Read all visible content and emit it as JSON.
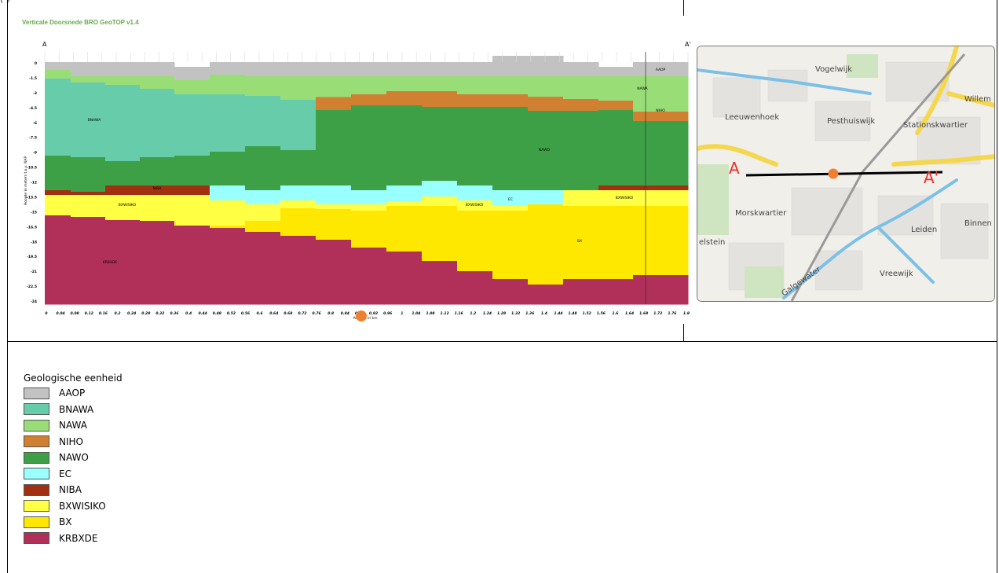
{
  "header": {
    "cut_text": "(                  )",
    "app_title": "Verticale Doorsnede BRO GeoTOP v1.4"
  },
  "section": {
    "label_start": "A",
    "label_end": "A'",
    "ylabel": "Hoogte in meters t.o.v. NAP",
    "xlabel": "Afstand in km",
    "y_ticks": [
      "0",
      "-1.5",
      "-3",
      "-4.5",
      "-6",
      "-7.5",
      "-9",
      "-10.5",
      "-12",
      "-13.5",
      "-15",
      "-16.5",
      "-18",
      "-19.5",
      "-21",
      "-22.5",
      "-24"
    ],
    "x_ticks": [
      "0",
      "0.04",
      "0.08",
      "0.12",
      "0.16",
      "0.2",
      "0.24",
      "0.28",
      "0.32",
      "0.36",
      "0.4",
      "0.44",
      "0.48",
      "0.52",
      "0.56",
      "0.6",
      "0.64",
      "0.68",
      "0.72",
      "0.76",
      "0.8",
      "0.84",
      "0.88",
      "0.92",
      "0.96",
      "1",
      "1.04",
      "1.08",
      "1.12",
      "1.16",
      "1.2",
      "1.24",
      "1.28",
      "1.32",
      "1.36",
      "1.4",
      "1.44",
      "1.48",
      "1.52",
      "1.56",
      "1.6",
      "1.64",
      "1.68",
      "1.72",
      "1.76",
      "1.8"
    ],
    "unit_labels": [
      {
        "text": "AAOP"
      },
      {
        "text": "NAWA"
      },
      {
        "text": "NIHO"
      },
      {
        "text": "BNAWA"
      },
      {
        "text": "NAWO"
      },
      {
        "text": "NIBA"
      },
      {
        "text": "BXWISIKO"
      },
      {
        "text": "BXWISIKO"
      },
      {
        "text": "EC"
      },
      {
        "text": "BXWISIKO"
      },
      {
        "text": "BX"
      },
      {
        "text": "KRBXDE"
      }
    ],
    "cursor_color": "#f08030"
  },
  "map": {
    "places": [
      "Vogelwijk",
      "Leeuwenhoek",
      "Pesthuiswijk",
      "Stationskwartier",
      "Willem",
      "Morskwartier",
      "Leiden",
      "Binnen",
      "Vreewijk",
      "Galgewater",
      "elstein"
    ],
    "marker_a": "A",
    "marker_a2": "A'",
    "line_color": "#000000",
    "marker_color": "#e8302a"
  },
  "legend": {
    "title": "Geologische eenheid",
    "items": [
      {
        "label": "AAOP",
        "color": "#c2c2c2"
      },
      {
        "label": "BNAWA",
        "color": "#66ccaa"
      },
      {
        "label": "NAWA",
        "color": "#99dd77"
      },
      {
        "label": "NIHO",
        "color": "#d08030"
      },
      {
        "label": "NAWO",
        "color": "#3ea046"
      },
      {
        "label": "EC",
        "color": "#99ffff"
      },
      {
        "label": "NIBA",
        "color": "#a03010"
      },
      {
        "label": "BXWISIKO",
        "color": "#ffff44"
      },
      {
        "label": "BX",
        "color": "#ffe800"
      },
      {
        "label": "KRBXDE",
        "color": "#b0305a"
      }
    ]
  }
}
